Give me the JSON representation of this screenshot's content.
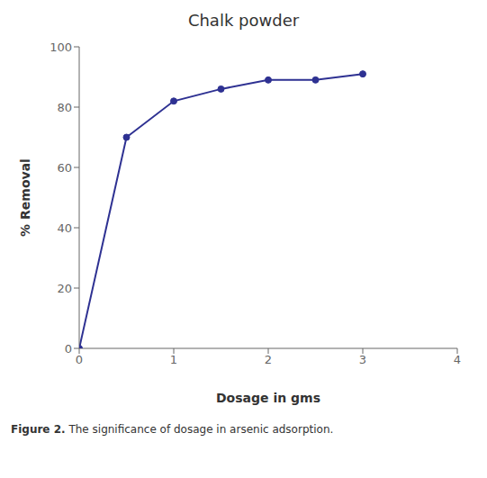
{
  "chart_data": {
    "type": "line",
    "title": "Chalk powder",
    "xlabel": "Dosage in gms",
    "ylabel": "% Removal",
    "x": [
      0,
      0.5,
      1.0,
      1.5,
      2.0,
      2.5,
      3.0
    ],
    "values": [
      0,
      70,
      82,
      86,
      89,
      89,
      91
    ],
    "xlim": [
      0,
      4
    ],
    "ylim": [
      0,
      100
    ],
    "xticks": [
      0,
      1,
      2,
      3,
      4
    ],
    "yticks": [
      0,
      20,
      40,
      60,
      80,
      100
    ],
    "color": "#2e3192",
    "marker": "o",
    "grid": false,
    "annotations": [
      "Figure 2.",
      "The significance of dosage in arsenic adsorption."
    ]
  }
}
